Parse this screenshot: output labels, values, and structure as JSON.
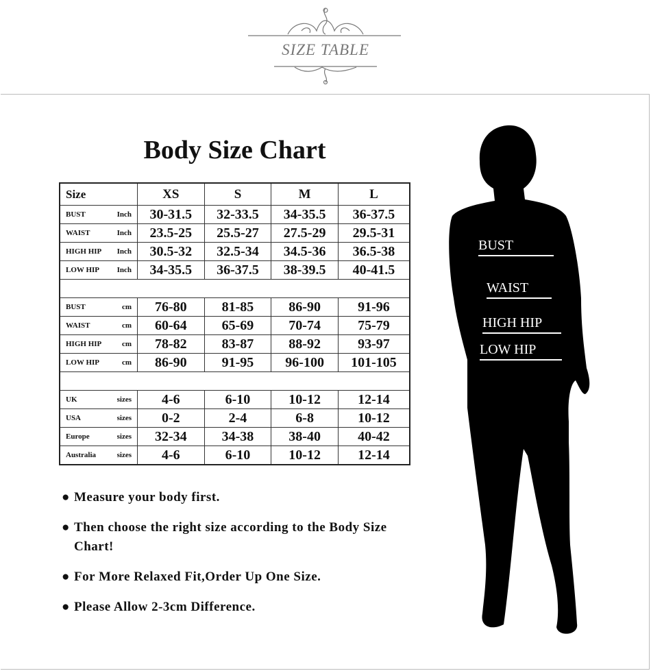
{
  "header": {
    "title": "SIZE TABLE"
  },
  "chart": {
    "title": "Body Size Chart",
    "columns": [
      "Size",
      "XS",
      "S",
      "M",
      "L"
    ],
    "inch_rows": [
      {
        "label": "BUST",
        "unit": "Inch",
        "values": [
          "30-31.5",
          "32-33.5",
          "34-35.5",
          "36-37.5"
        ]
      },
      {
        "label": "WAIST",
        "unit": "Inch",
        "values": [
          "23.5-25",
          "25.5-27",
          "27.5-29",
          "29.5-31"
        ]
      },
      {
        "label": "HIGH HIP",
        "unit": "Inch",
        "values": [
          "30.5-32",
          "32.5-34",
          "34.5-36",
          "36.5-38"
        ]
      },
      {
        "label": "LOW HIP",
        "unit": "Inch",
        "values": [
          "34-35.5",
          "36-37.5",
          "38-39.5",
          "40-41.5"
        ]
      }
    ],
    "cm_rows": [
      {
        "label": "BUST",
        "unit": "cm",
        "values": [
          "76-80",
          "81-85",
          "86-90",
          "91-96"
        ]
      },
      {
        "label": "WAIST",
        "unit": "cm",
        "values": [
          "60-64",
          "65-69",
          "70-74",
          "75-79"
        ]
      },
      {
        "label": "HIGH HIP",
        "unit": "cm",
        "values": [
          "78-82",
          "83-87",
          "88-92",
          "93-97"
        ]
      },
      {
        "label": "LOW HIP",
        "unit": "cm",
        "values": [
          "86-90",
          "91-95",
          "96-100",
          "101-105"
        ]
      }
    ],
    "size_rows": [
      {
        "label": "UK",
        "unit": "sizes",
        "values": [
          "4-6",
          "6-10",
          "10-12",
          "12-14"
        ]
      },
      {
        "label": "USA",
        "unit": "sizes",
        "values": [
          "0-2",
          "2-4",
          "6-8",
          "10-12"
        ]
      },
      {
        "label": "Europe",
        "unit": "sizes",
        "values": [
          "32-34",
          "34-38",
          "38-40",
          "40-42"
        ]
      },
      {
        "label": "Australia",
        "unit": "sizes",
        "values": [
          "4-6",
          "6-10",
          "10-12",
          "12-14"
        ]
      }
    ]
  },
  "notes": [
    "Measure your body first.",
    "Then choose the right size according to the Body Size Chart!",
    "For More Relaxed Fit,Order Up One Size.",
    "Please Allow 2-3cm Difference."
  ],
  "figure": {
    "labels": [
      "BUST",
      "WAIST",
      "HIGH HIP",
      "LOW HIP"
    ]
  }
}
